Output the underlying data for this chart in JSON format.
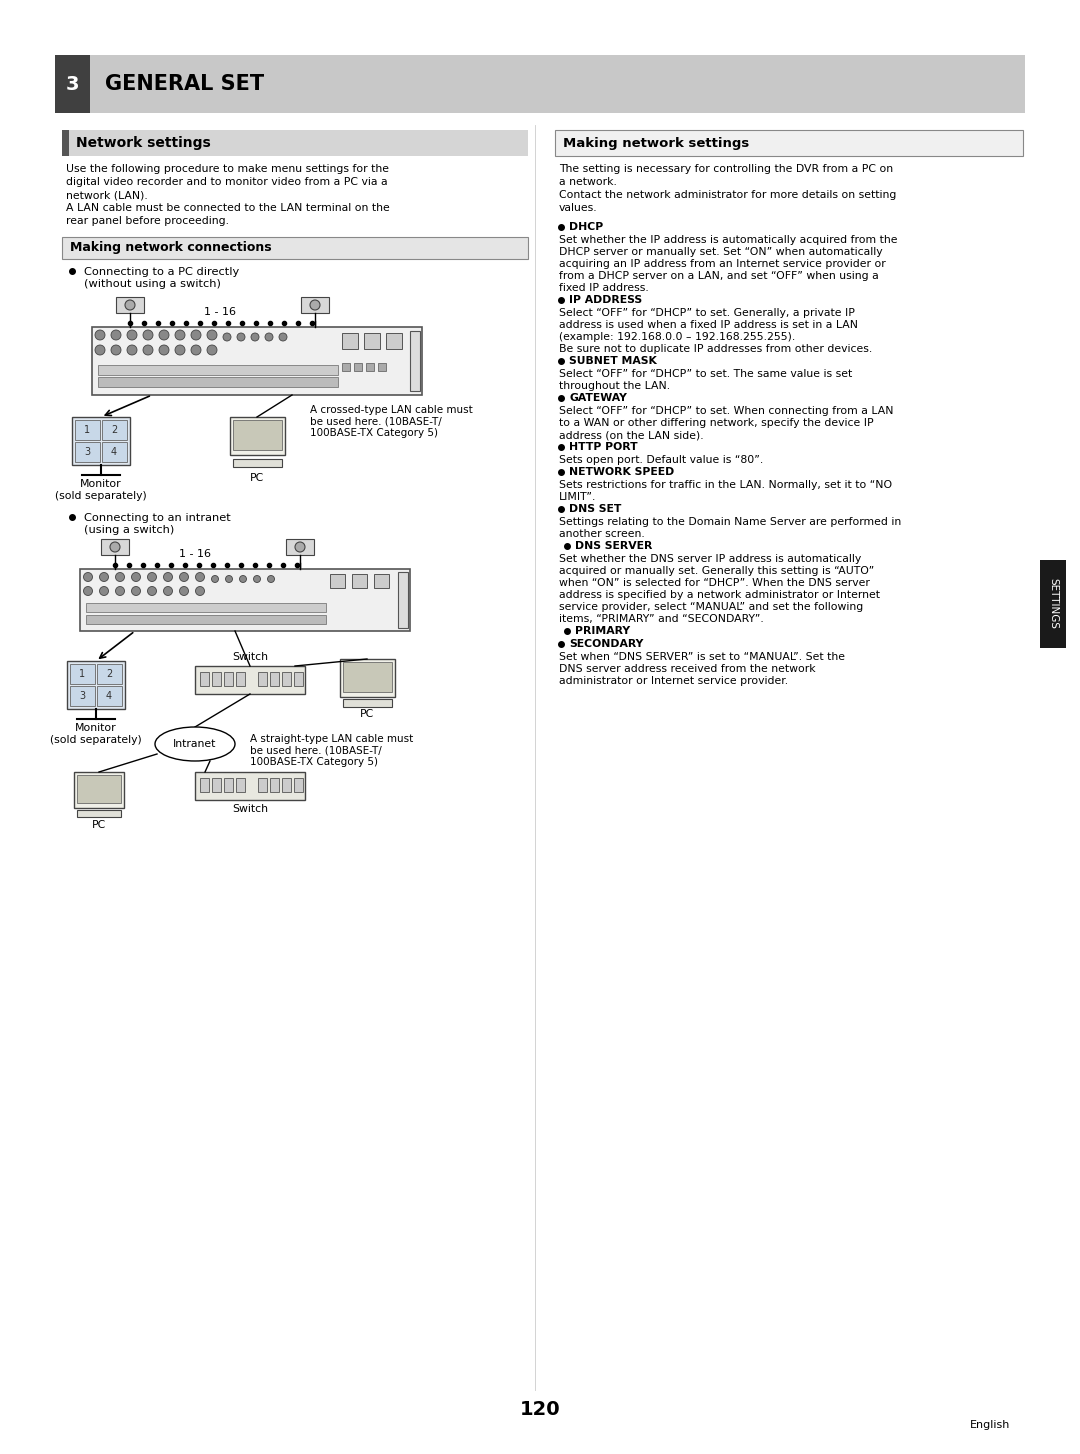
{
  "page_bg": "#ffffff",
  "header_bg": "#c8c8c8",
  "header_num_bg": "#404040",
  "header_text": "GENERAL SET",
  "header_num": "3",
  "section_left_title": "Network settings",
  "section_right_title": "Making network settings",
  "subsection_left_title": "Making network connections",
  "page_number": "120",
  "lang_label": "English",
  "settings_tab_color": "#1a1a1a",
  "left_intro": "Use the following procedure to make menu settings for the\ndigital video recorder and to monitor video from a PC via a\nnetwork (LAN).\nA LAN cable must be connected to the LAN terminal on the\nrear panel before proceeding.",
  "right_intro": "The setting is necessary for controlling the DVR from a PC on\na network.\nContact the network administrator for more details on setting\nvalues.",
  "bullet1_title": "Connecting to a PC directly\n(without using a switch)",
  "bullet2_title": "Connecting to an intranet\n(using a switch)",
  "crosstype_note": "A crossed-type LAN cable must\nbe used here. (10BASE-T/\n100BASE-TX Category 5)",
  "straighttype_note": "A straight-type LAN cable must\nbe used here. (10BASE-T/\n100BASE-TX Category 5)",
  "range_label": "1 - 16",
  "monitor_label": "Monitor\n(sold separately)",
  "switch_label": "Switch",
  "intranet_label": "Intranet",
  "right_bullets": [
    {
      "title": "DHCP",
      "body": "Set whether the IP address is automatically acquired from the\nDHCP server or manually set. Set “ON” when automatically\nacquiring an IP address from an Internet service provider or\nfrom a DHCP server on a LAN, and set “OFF” when using a\nfixed IP address.",
      "indent": false
    },
    {
      "title": "IP ADDRESS",
      "body": "Select “OFF” for “DHCP” to set. Generally, a private IP\naddress is used when a fixed IP address is set in a LAN\n(example: 192.168.0.0 – 192.168.255.255).\nBe sure not to duplicate IP addresses from other devices.",
      "indent": false
    },
    {
      "title": "SUBNET MASK",
      "body": "Select “OFF” for “DHCP” to set. The same value is set\nthroughout the LAN.",
      "indent": false
    },
    {
      "title": "GATEWAY",
      "body": "Select “OFF” for “DHCP” to set. When connecting from a LAN\nto a WAN or other differing network, specify the device IP\naddress (on the LAN side).",
      "indent": false
    },
    {
      "title": "HTTP PORT",
      "body": "Sets open port. Default value is “80”.",
      "indent": false
    },
    {
      "title": "NETWORK SPEED",
      "body": "Sets restrictions for traffic in the LAN. Normally, set it to “NO\nLIMIT”.",
      "indent": false
    },
    {
      "title": "DNS SET",
      "body": "Settings relating to the Domain Name Server are performed in\nanother screen.",
      "indent": false
    },
    {
      "title": "DNS SERVER",
      "body": "Set whether the DNS server IP address is automatically\nacquired or manually set. Generally this setting is “AUTO”\nwhen “ON” is selected for “DHCP”. When the DNS server\naddress is specified by a network administrator or Internet\nservice provider, select “MANUAL” and set the following\nitems, “PRIMARY” and “SECONDARY”.",
      "indent": true
    },
    {
      "title": "PRIMARY",
      "body": "",
      "indent": true
    },
    {
      "title": "SECONDARY",
      "body": "Set when “DNS SERVER” is set to “MANUAL”. Set the\nDNS server address received from the network\nadministrator or Internet service provider.",
      "indent": false
    }
  ]
}
